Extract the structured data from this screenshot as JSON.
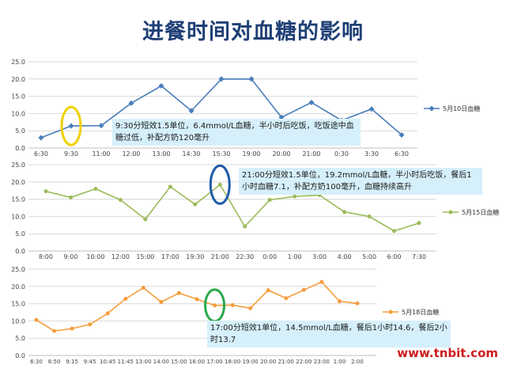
{
  "title": "进餐时间对血糖的影响",
  "watermark": "www.tnbit.com",
  "chart_data": [
    {
      "type": "line",
      "categories": [
        "6:30",
        "9:30",
        "11:00",
        "12:00",
        "13:00",
        "14:30",
        "15:30",
        "19:00",
        "20:00",
        "21:00",
        "0:30",
        "3:30",
        "6:30"
      ],
      "series": [
        {
          "name": "5月10日血糖",
          "color": "#4a7ebb",
          "values": [
            3.0,
            6.4,
            6.5,
            13.0,
            18.0,
            10.8,
            20.0,
            20.0,
            8.9,
            13.2,
            8.0,
            11.3,
            3.8
          ]
        }
      ],
      "ylim": [
        0,
        25
      ],
      "yticks": [
        "0.0",
        "5.0",
        "10.0",
        "15.0",
        "20.0",
        "25.0"
      ],
      "grid": true,
      "legend": "right",
      "highlight": {
        "index": 1,
        "color": "#f0d000"
      },
      "annotation": "9:30分短效1.5单位，6.4mmol/L血糖，半小时后吃饭，吃饭途中血糖过低，补配方奶120毫升"
    },
    {
      "type": "line",
      "categories": [
        "8:00",
        "9:00",
        "10:00",
        "12:00",
        "15:00",
        "17:00",
        "19:30",
        "21:00",
        "22:30",
        "0:00",
        "1:00",
        "3:00",
        "4:00",
        "5:00",
        "6:00",
        "7:30"
      ],
      "series": [
        {
          "name": "5月15日血糖",
          "color": "#9bbb59",
          "values": [
            17.3,
            15.5,
            18.0,
            14.8,
            9.2,
            18.6,
            13.5,
            19.2,
            7.1,
            14.8,
            15.8,
            16.2,
            11.3,
            10.0,
            5.8,
            8.1
          ]
        }
      ],
      "ylim": [
        0,
        25
      ],
      "yticks": [
        "0.0",
        "5.0",
        "10.0",
        "15.0",
        "20.0",
        "25.0"
      ],
      "grid": true,
      "legend": "right",
      "highlight": {
        "index": 7,
        "color": "#1f5aa8"
      },
      "annotation": "21:00分短效1.5单位，19.2mmol/L血糖，半小时后吃饭，餐后1小时血糖7.1，补配方奶100毫升，血糖持续高升"
    },
    {
      "type": "line",
      "categories": [
        "6:30",
        "8:50",
        "9:15",
        "9:45",
        "10:45",
        "11:45",
        "13:00",
        "14:00",
        "15:00",
        "16:00",
        "17:00",
        "18:00",
        "19:00",
        "20:00",
        "21:00",
        "22:00",
        "23:00",
        "1:00",
        "2:00"
      ],
      "tick_labels": [
        "6:30",
        "8:50",
        "9:15",
        "9:45",
        "10:45",
        "11:45",
        "13:00",
        "14:00",
        "15:00",
        "16:00",
        "17:00",
        "18:00",
        "19:00",
        "20:00",
        "21:00",
        "22:00",
        "23:00",
        "1:00",
        "2:00"
      ],
      "series": [
        {
          "name": "5月18日血糖",
          "color": "#f59d3d",
          "values": [
            10.3,
            7.1,
            7.8,
            9.0,
            12.2,
            16.4,
            19.6,
            15.5,
            18.1,
            16.3,
            14.5,
            14.6,
            13.7,
            18.9,
            16.6,
            19.0,
            21.3,
            15.7,
            15.1
          ]
        }
      ],
      "ylim": [
        0,
        25
      ],
      "yticks": [
        "0.0",
        "5.0",
        "10.0",
        "15.0",
        "20.0",
        "25.0"
      ],
      "grid": true,
      "legend": "right",
      "highlight": {
        "index": 10,
        "color": "#2aa84a"
      },
      "annotation": "17:00分短效1单位，14.5mmol/L血糖，餐后1小时14.6，餐后2小时13.7"
    }
  ]
}
